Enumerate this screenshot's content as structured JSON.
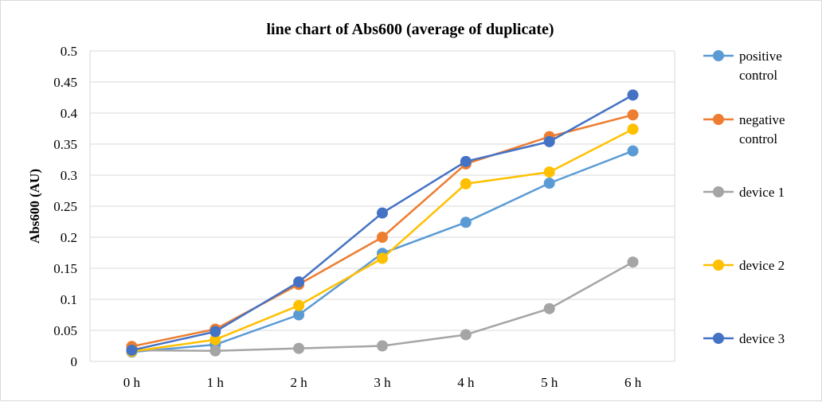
{
  "chart_data": {
    "type": "line",
    "title": "line chart of Abs600 (average of duplicate)",
    "xlabel": "",
    "ylabel": "Abs600 (AU)",
    "categories": [
      "0 h",
      "1 h",
      "2 h",
      "3 h",
      "4 h",
      "5 h",
      "6 h"
    ],
    "ylim": [
      0,
      0.5
    ],
    "yticks": [
      "0",
      "0.05",
      "0.1",
      "0.15",
      "0.2",
      "0.25",
      "0.3",
      "0.35",
      "0.4",
      "0.45",
      "0.5"
    ],
    "grid": true,
    "legend_position": "right",
    "series": [
      {
        "name": "positive control",
        "legend_lines": [
          "positive",
          "control"
        ],
        "color": "#5b9bd5",
        "values": [
          0.015,
          0.027,
          0.075,
          0.174,
          0.224,
          0.287,
          0.339
        ]
      },
      {
        "name": "negative control",
        "legend_lines": [
          "negative",
          "control"
        ],
        "color": "#ed7d31",
        "values": [
          0.024,
          0.052,
          0.124,
          0.2,
          0.318,
          0.362,
          0.397
        ]
      },
      {
        "name": "device 1",
        "legend_lines": [
          "device 1"
        ],
        "color": "#a5a5a5",
        "values": [
          0.018,
          0.017,
          0.021,
          0.025,
          0.043,
          0.085,
          0.16
        ]
      },
      {
        "name": "device 2",
        "legend_lines": [
          "device 2"
        ],
        "color": "#ffc000",
        "values": [
          0.016,
          0.035,
          0.09,
          0.166,
          0.286,
          0.305,
          0.374
        ]
      },
      {
        "name": "device 3",
        "legend_lines": [
          "device 3"
        ],
        "color": "#4472c4",
        "values": [
          0.018,
          0.048,
          0.128,
          0.239,
          0.322,
          0.354,
          0.429
        ]
      }
    ]
  }
}
